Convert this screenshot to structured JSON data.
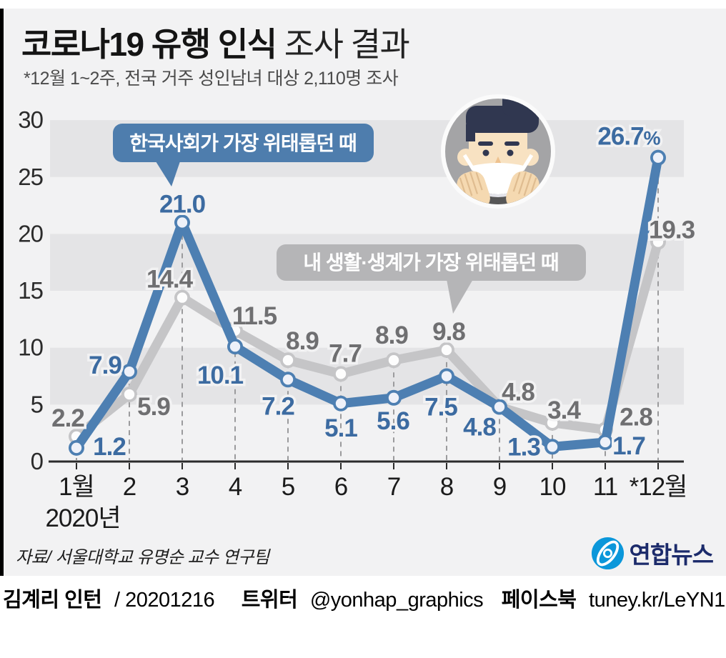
{
  "header": {
    "title_bold": "코로나19 유행 인식",
    "title_regular": " 조사 결과",
    "subtitle": "*12월 1~2주, 전국 거주 성인남녀 대상 2,110명 조사"
  },
  "chart_data": {
    "type": "line",
    "categories": [
      "1월",
      "2",
      "3",
      "4",
      "5",
      "6",
      "7",
      "8",
      "9",
      "10",
      "11",
      "*12월"
    ],
    "x_sub_label": "2020년",
    "ylim": [
      0,
      30
    ],
    "yticks": [
      0,
      5,
      10,
      15,
      20,
      25,
      30
    ],
    "grid": "alternating-horizontal-bands",
    "legend_position": "callouts-inside-plot",
    "series": [
      {
        "name": "내 생활·생계가 가장 위태롭던 때",
        "color": "#c5c5c7",
        "label_color": "#6f6f71",
        "values": [
          2.2,
          5.9,
          14.4,
          11.5,
          8.9,
          7.7,
          8.9,
          9.8,
          4.8,
          3.4,
          2.8,
          19.3
        ],
        "labels": [
          "2.2",
          "5.9",
          "14.4",
          "11.5",
          "8.9",
          "7.7",
          "8.9",
          "9.8",
          "4.8",
          "3.4",
          "2.8",
          "19.3"
        ]
      },
      {
        "name": "한국사회가 가장 위태롭던 때",
        "color": "#4d7fb2",
        "label_color": "#3c6ba1",
        "values": [
          1.2,
          7.9,
          21.0,
          10.1,
          7.2,
          5.1,
          5.6,
          7.5,
          4.8,
          1.3,
          1.7,
          26.7
        ],
        "labels": [
          "1.2",
          "7.9",
          "21.0",
          "10.1",
          "7.2",
          "5.1",
          "5.6",
          "7.5",
          "4.8",
          "1.3",
          "1.7",
          "26.7%"
        ]
      }
    ],
    "callouts": [
      {
        "text": "한국사회가 가장 위태롭던 때",
        "color": "#4e7dad",
        "points_to": "2020-03 society peak 21.0"
      },
      {
        "text": "내 생활·생계가 가장 위태롭던 때",
        "color": "#b5b5b7",
        "points_to": "2020-08 livelihood 9.8"
      }
    ]
  },
  "source": "자료/ 서울대학교 유명순 교수 연구팀",
  "brand": {
    "name": "연합뉴스"
  },
  "footer": {
    "credit_name": "김계리 인턴",
    "credit_date": "/ 20201216",
    "twitter_label": "트위터",
    "twitter_handle": "@yonhap_graphics",
    "facebook_label": "페이스북",
    "facebook_url": "tuney.kr/LeYN1"
  }
}
